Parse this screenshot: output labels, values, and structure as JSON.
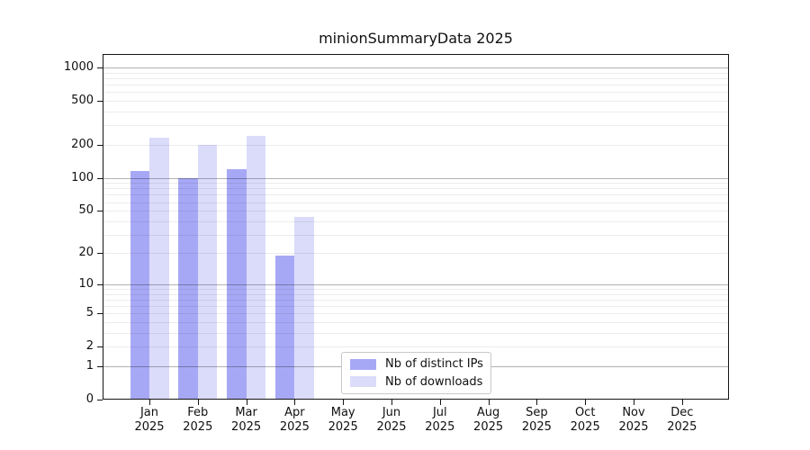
{
  "title": "minionSummaryData 2025",
  "legend": {
    "position": "bottom-center-inside",
    "items": [
      {
        "label": "Nb of distinct IPs",
        "color": "#a7a8f5"
      },
      {
        "label": "Nb of downloads",
        "color": "#dbdcfa"
      }
    ]
  },
  "chart_data": {
    "type": "bar",
    "title": "minionSummaryData 2025",
    "categories": [
      "Jan 2025",
      "Feb 2025",
      "Mar 2025",
      "Apr 2025",
      "May 2025",
      "Jun 2025",
      "Jul 2025",
      "Aug 2025",
      "Sep 2025",
      "Oct 2025",
      "Nov 2025",
      "Dec 2025"
    ],
    "series": [
      {
        "name": "Nb of distinct IPs",
        "color": "#a7a8f5",
        "values": [
          115,
          100,
          120,
          19,
          null,
          null,
          null,
          null,
          null,
          null,
          null,
          null
        ]
      },
      {
        "name": "Nb of downloads",
        "color": "#dbdcfa",
        "values": [
          230,
          200,
          240,
          44,
          null,
          null,
          null,
          null,
          null,
          null,
          null,
          null
        ]
      }
    ],
    "xlabel": "",
    "ylabel": "",
    "y_axis": {
      "scale": "symlog (position = ln(1+value))",
      "tick_labels": [
        0,
        1,
        2,
        5,
        10,
        20,
        50,
        100,
        200,
        500,
        1000
      ],
      "range": [
        0,
        1326
      ]
    },
    "grid": {
      "horizontal": true,
      "major_lines_at": [
        1,
        10,
        100,
        1000
      ],
      "minor_lines": "k×10^n for k=2..9, n=0..2",
      "major_color": "#b3b3b3",
      "minor_color": "#ebebeb"
    },
    "legend_position": "bottom-center-inside"
  }
}
